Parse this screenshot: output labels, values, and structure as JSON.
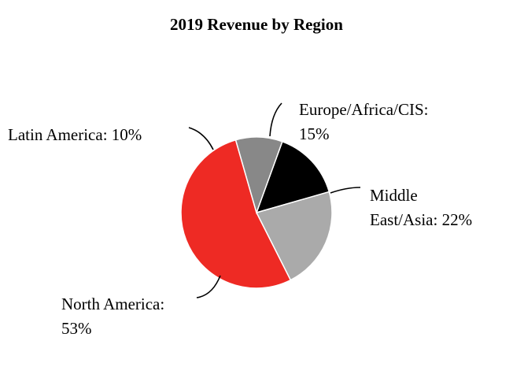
{
  "chart_data": {
    "type": "pie",
    "title": "2019 Revenue by Region",
    "slices": [
      {
        "label": "Europe/Africa/CIS",
        "value": 15,
        "color": "#000000",
        "label_lines": [
          "Europe/Africa/CIS:",
          "15%"
        ]
      },
      {
        "label": "Middle East/Asia",
        "value": 22,
        "color": "#aaaaaa",
        "label_lines": [
          "Middle",
          "East/Asia: 22%"
        ]
      },
      {
        "label": "North America",
        "value": 53,
        "color": "#ee2a24",
        "label_lines": [
          "North America:",
          "53%"
        ]
      },
      {
        "label": "Latin America",
        "value": 10,
        "color": "#888888",
        "label_lines": [
          "Latin America: 10%"
        ]
      }
    ],
    "start_angle_deg": 20,
    "direction": "clockwise"
  }
}
